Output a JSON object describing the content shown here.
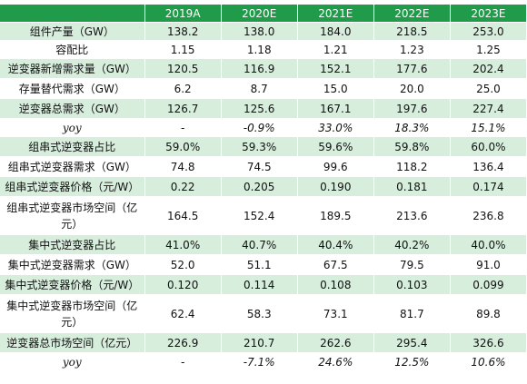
{
  "table": {
    "headers": [
      "",
      "2019A",
      "2020E",
      "2021E",
      "2022E",
      "2023E"
    ],
    "rows": [
      {
        "label": "组件产量（GW）",
        "values": [
          "138.2",
          "138.0",
          "184.0",
          "218.5",
          "253.0"
        ]
      },
      {
        "label": "容配比",
        "values": [
          "1.15",
          "1.18",
          "1.21",
          "1.23",
          "1.25"
        ]
      },
      {
        "label": "逆变器新增需求量（GW）",
        "values": [
          "120.5",
          "116.9",
          "152.1",
          "177.6",
          "202.4"
        ]
      },
      {
        "label": "存量替代需求（GW）",
        "values": [
          "6.2",
          "8.7",
          "15.0",
          "20.0",
          "25.0"
        ]
      },
      {
        "label": "逆变器总需求（GW）",
        "values": [
          "126.7",
          "125.6",
          "167.1",
          "197.6",
          "227.4"
        ]
      },
      {
        "label": "yoy",
        "values": [
          "-",
          "-0.9%",
          "33.0%",
          "18.3%",
          "15.1%"
        ]
      },
      {
        "label": "组串式逆变器占比",
        "values": [
          "59.0%",
          "59.3%",
          "59.6%",
          "59.8%",
          "60.0%"
        ]
      },
      {
        "label": "组串式逆变器需求（GW）",
        "values": [
          "74.8",
          "74.5",
          "99.6",
          "118.2",
          "136.4"
        ]
      },
      {
        "label": "组串式逆变器价格（元/W）",
        "values": [
          "0.22",
          "0.205",
          "0.190",
          "0.181",
          "0.174"
        ]
      },
      {
        "label": "组串式逆变器市场空间（亿元）",
        "values": [
          "164.5",
          "152.4",
          "189.5",
          "213.6",
          "236.8"
        ]
      },
      {
        "label": "集中式逆变器占比",
        "values": [
          "41.0%",
          "40.7%",
          "40.4%",
          "40.2%",
          "40.0%"
        ]
      },
      {
        "label": "集中式逆变器需求（GW）",
        "values": [
          "52.0",
          "51.1",
          "67.5",
          "79.5",
          "91.0"
        ]
      },
      {
        "label": "集中式逆变器价格（元/W）",
        "values": [
          "0.120",
          "0.114",
          "0.108",
          "0.103",
          "0.099"
        ]
      },
      {
        "label": "集中式逆变器市场空间（亿元）",
        "values": [
          "62.4",
          "58.3",
          "73.1",
          "81.7",
          "89.8"
        ]
      },
      {
        "label": "逆变器总市场空间（亿元）",
        "values": [
          "226.9",
          "210.7",
          "262.6",
          "295.4",
          "326.6"
        ]
      },
      {
        "label": "yoy",
        "values": [
          "-",
          "-7.1%",
          "24.6%",
          "12.5%",
          "10.6%"
        ]
      }
    ]
  },
  "colors": {
    "header_bg": "#1f9b4a",
    "band_bg": "#d7eedd",
    "plain_bg": "#ffffff"
  }
}
